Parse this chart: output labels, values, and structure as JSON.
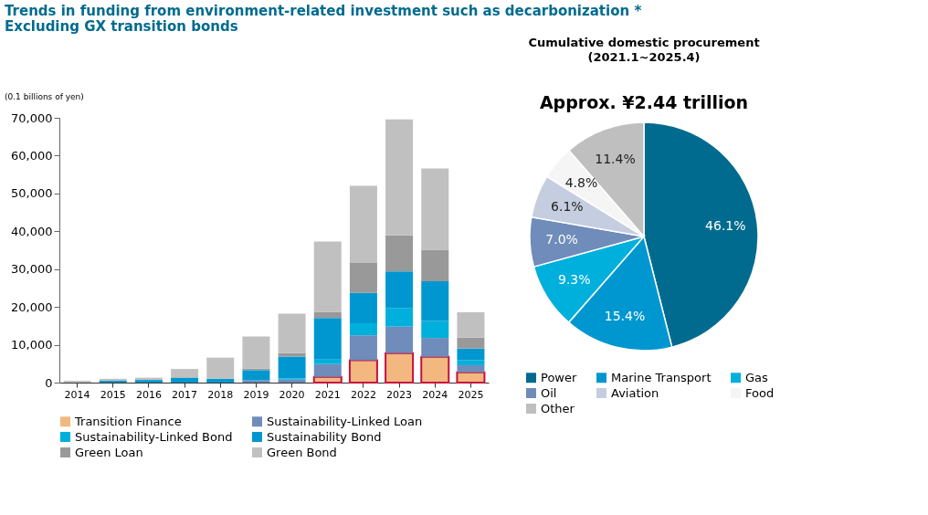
{
  "chart_data": [
    {
      "type": "bar",
      "title": "Trends in funding from environment-related investment such as decarbonization * Excluding GX transition bonds",
      "ylabel": "(0.1 billions of yen)",
      "stacked": true,
      "categories": [
        "2014",
        "2015",
        "2016",
        "2017",
        "2018",
        "2019",
        "2020",
        "2021",
        "2022",
        "2023",
        "2024",
        "2025"
      ],
      "series": [
        {
          "name": "Transition Finance",
          "color": "#f2b880",
          "values": [
            0,
            0,
            0,
            0,
            0,
            0,
            0,
            1500,
            5900,
            7800,
            6800,
            2700
          ]
        },
        {
          "name": "Sustainability-Linked Loan",
          "color": "#6f8cba",
          "values": [
            0,
            0,
            0,
            0,
            0,
            600,
            800,
            3400,
            6600,
            7000,
            5000,
            1900
          ]
        },
        {
          "name": "Sustainability-Linked Bond",
          "color": "#00b0dc",
          "values": [
            0,
            0,
            0,
            0,
            0,
            0,
            300,
            1200,
            3200,
            4900,
            4500,
            1300
          ]
        },
        {
          "name": "Sustainability Bond",
          "color": "#0097d0",
          "values": [
            0,
            500,
            700,
            1300,
            1000,
            2700,
            5800,
            11000,
            8000,
            9700,
            10500,
            3100
          ]
        },
        {
          "name": "Green Loan",
          "color": "#999999",
          "values": [
            0,
            0,
            0,
            100,
            100,
            400,
            900,
            1600,
            7900,
            9500,
            8300,
            2900
          ]
        },
        {
          "name": "Green Bond",
          "color": "#c0c0c0",
          "values": [
            500,
            500,
            600,
            2200,
            5500,
            8500,
            10400,
            18600,
            20400,
            30700,
            21500,
            6700
          ]
        }
      ],
      "ylim": [
        0,
        70000
      ],
      "yticks": [
        {
          "value": 0,
          "label": "0"
        },
        {
          "value": 10000,
          "label": "10,000"
        },
        {
          "value": 20000,
          "label": "20,000"
        },
        {
          "value": 30000,
          "label": "30,000"
        },
        {
          "value": 40000,
          "label": "40,000"
        },
        {
          "value": 50000,
          "label": "50,000"
        },
        {
          "value": 60000,
          "label": "60,000"
        },
        {
          "value": 70000,
          "label": "70,000"
        }
      ],
      "grid": false,
      "legend": "bottom"
    },
    {
      "type": "pie",
      "title": "Cumulative domestic procurement",
      "subtitle": "(2021.1~2025.4)",
      "annotations": [
        "Approx. ¥2.44 trillion"
      ],
      "categories": [
        "Power",
        "Marine Transport",
        "Gas",
        "Oil",
        "Aviation",
        "Food",
        "Other"
      ],
      "values": [
        46.1,
        15.4,
        9.3,
        7.0,
        6.1,
        4.8,
        11.4
      ],
      "colors": [
        "#006b8f",
        "#0097d0",
        "#00b0dc",
        "#6f8cba",
        "#c5cee0",
        "#f5f5f5",
        "#bfbfbf"
      ],
      "value_labels": [
        "46.1%",
        "15.4%",
        "9.3%",
        "7.0%",
        "6.1%",
        "4.8%",
        "11.4%"
      ],
      "legend": "bottom"
    }
  ]
}
